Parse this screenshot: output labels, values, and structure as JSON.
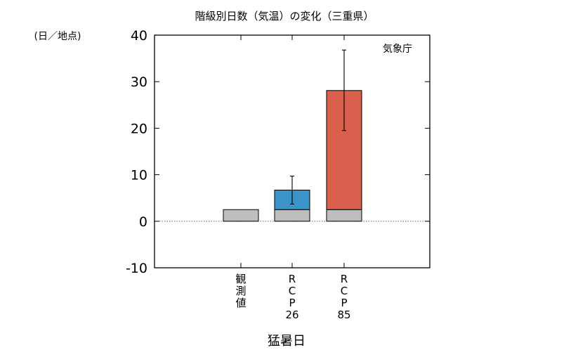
{
  "chart_data": {
    "type": "bar",
    "title": "階級別日数（気温）の変化（三重県）",
    "ylabel": "(日／地点)",
    "xlabel": "猛暑日",
    "annotation": "気象庁",
    "ylim": [
      -10,
      40
    ],
    "yticks": [
      -10,
      0,
      10,
      20,
      30,
      40
    ],
    "grid": false,
    "categories": [
      {
        "id": "observed",
        "label_lines": [
          "観",
          "測",
          "値"
        ]
      },
      {
        "id": "rcp26",
        "label_lines": [
          "R",
          "C",
          "P",
          "26"
        ]
      },
      {
        "id": "rcp85",
        "label_lines": [
          "R",
          "C",
          "P",
          "85"
        ]
      }
    ],
    "series": [
      {
        "id": "present",
        "color": "#bebebe",
        "values": [
          2.5,
          2.5,
          2.5
        ]
      },
      {
        "id": "increase",
        "color_by_category": [
          "#bebebe",
          "#3a94c8",
          "#d9604c"
        ],
        "values": [
          0,
          4.2,
          25.6
        ]
      }
    ],
    "totals": [
      2.5,
      6.7,
      28.1
    ],
    "error_bars": [
      null,
      {
        "low": 3.7,
        "high": 9.7
      },
      {
        "low": 19.5,
        "high": 36.8
      }
    ]
  }
}
